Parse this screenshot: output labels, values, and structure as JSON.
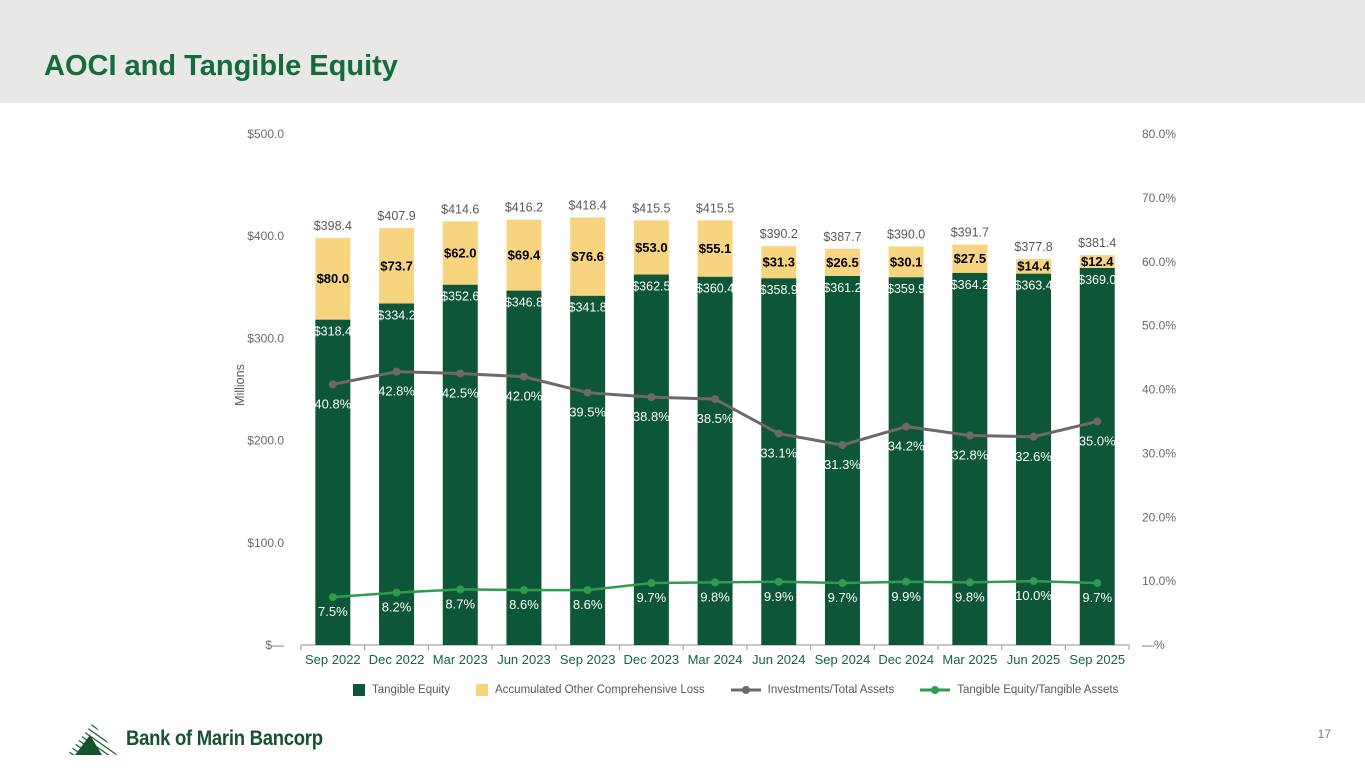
{
  "slide": {
    "title": "AOCI and Tangible Equity",
    "page_number": "17"
  },
  "footer": {
    "logo_text": "Bank of Marin Bancorp"
  },
  "colors": {
    "header_band": "#E8E9E6",
    "title_green": "#156B3B",
    "bar_green": "#0D5638",
    "aoci_yellow": "#F7D480",
    "line_gray": "#6E6868",
    "line_green": "#2F9B4D",
    "axis_text": "#6a6a6a",
    "category_text": "#1A6244"
  },
  "chart_data": {
    "type": "combo-bar-line",
    "title": "",
    "categories": [
      "Sep 2022",
      "Dec 2022",
      "Mar 2023",
      "Jun 2023",
      "Sep 2023",
      "Dec 2023",
      "Mar 2024",
      "Jun 2024",
      "Sep 2024",
      "Dec 2024",
      "Mar 2025",
      "Jun 2025",
      "Sep 2025"
    ],
    "series": [
      {
        "name": "Tangible Equity",
        "type": "bar",
        "stack": 0,
        "color": "#0D5638",
        "label_color": "#FFFFFF",
        "values": [
          318.4,
          334.2,
          352.6,
          346.8,
          341.8,
          362.5,
          360.4,
          358.9,
          361.2,
          359.9,
          364.2,
          363.4,
          369.0
        ]
      },
      {
        "name": "Accumulated Other Comprehensive Loss",
        "type": "bar",
        "stack": 1,
        "color": "#F7D480",
        "label_color": "#000000",
        "values": [
          80.0,
          73.7,
          62.0,
          69.4,
          76.6,
          53.0,
          55.1,
          31.3,
          26.5,
          30.1,
          27.5,
          14.4,
          12.4
        ]
      },
      {
        "name": "Investments/Total Assets",
        "type": "line",
        "axis": "right",
        "color": "#6E6868",
        "label_color": "#FFFFFF",
        "values": [
          40.8,
          42.8,
          42.5,
          42.0,
          39.5,
          38.8,
          38.5,
          33.1,
          31.3,
          34.2,
          32.8,
          32.6,
          35.0
        ]
      },
      {
        "name": "Tangible Equity/Tangible Assets",
        "type": "line",
        "axis": "right",
        "color": "#2F9B4D",
        "label_color": "#FFFFFF",
        "values": [
          7.5,
          8.2,
          8.7,
          8.6,
          8.6,
          9.7,
          9.8,
          9.9,
          9.7,
          9.9,
          9.8,
          10.0,
          9.7
        ]
      }
    ],
    "totals": [
      398.4,
      407.9,
      414.6,
      416.2,
      418.4,
      415.5,
      415.5,
      390.2,
      387.7,
      390.0,
      391.7,
      377.8,
      381.4
    ],
    "left_axis": {
      "label": "Millions",
      "tick_labels": [
        "$500.0",
        "$400.0",
        "$300.0",
        "$200.0",
        "$100.0",
        "$—"
      ],
      "max": 500,
      "step": 100
    },
    "right_axis": {
      "tick_labels": [
        "80.0%",
        "70.0%",
        "60.0%",
        "50.0%",
        "40.0%",
        "30.0%",
        "20.0%",
        "10.0%",
        "—%"
      ],
      "max": 80,
      "step": 10
    },
    "legend_position": "bottom",
    "grid": false
  }
}
